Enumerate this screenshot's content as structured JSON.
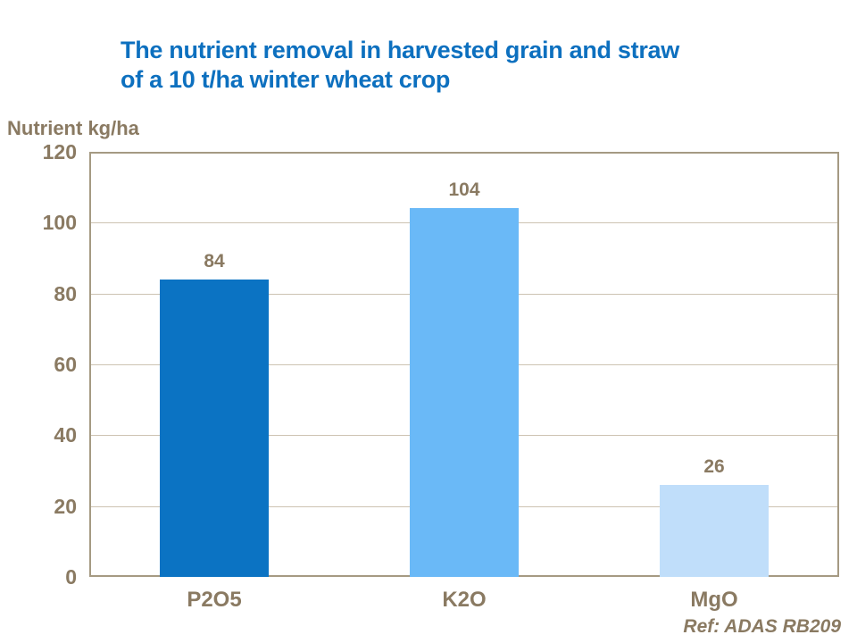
{
  "title": {
    "line1": "The nutrient removal in harvested grain and straw",
    "line2": "of a 10 t/ha winter wheat crop"
  },
  "colors": {
    "title_blue": "#0d70bf",
    "text_brown": "#8a7a62",
    "gridline": "#cdc3b2",
    "plot_frame": "#a59a83"
  },
  "chart_data": {
    "type": "bar",
    "title": "The nutrient removal in harvested grain and straw of a 10 t/ha winter wheat crop",
    "ylabel": "Nutrient kg/ha",
    "xlabel": "",
    "categories": [
      "P2O5",
      "K2O",
      "MgO"
    ],
    "values": [
      84,
      104,
      26
    ],
    "bar_colors": [
      "#0b73c3",
      "#6ab9f7",
      "#c0defa"
    ],
    "ylim": [
      0,
      120
    ],
    "yticks": [
      0,
      20,
      40,
      60,
      80,
      100,
      120
    ],
    "grid": true,
    "legend": "none",
    "annotation": "Ref: ADAS RB209"
  }
}
